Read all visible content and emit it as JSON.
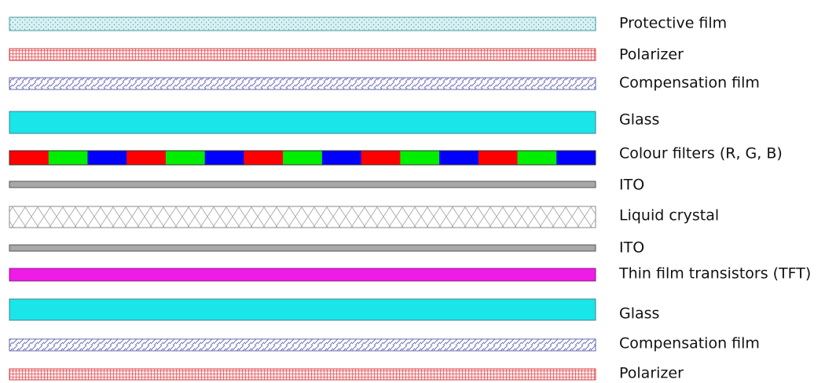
{
  "title": "",
  "layers": [
    {
      "id": "protective-film",
      "label": "Protective film",
      "pattern": "dotted",
      "fill": "#d8f1f3",
      "stroke": "#4a9a9f"
    },
    {
      "id": "polarizer-top",
      "label": "Polarizer",
      "pattern": "grid",
      "fill": "#fde8e8",
      "stroke": "#d8444a"
    },
    {
      "id": "compensation-film-top",
      "label": "Compensation film",
      "pattern": "diagonal",
      "fill": "#ffffff",
      "stroke": "#6a6ab2"
    },
    {
      "id": "glass-top",
      "label": "Glass",
      "pattern": "solid",
      "fill": "#19e6e8",
      "stroke": "#4a7e8c"
    },
    {
      "id": "colour-filters",
      "label": "Colour filters (R, G, B)",
      "pattern": "rgb",
      "fill": "",
      "stroke": "#333333"
    },
    {
      "id": "ito-top",
      "label": "ITO",
      "pattern": "solid",
      "fill": "#a8a8a8",
      "stroke": "#555555"
    },
    {
      "id": "liquid-crystal",
      "label": "Liquid crystal",
      "pattern": "crosshatch",
      "fill": "#ffffff",
      "stroke": "#8a8a8a"
    },
    {
      "id": "ito-bottom",
      "label": "ITO",
      "pattern": "solid",
      "fill": "#a8a8a8",
      "stroke": "#555555"
    },
    {
      "id": "tft",
      "label": "Thin film transistors (TFT)",
      "pattern": "solid",
      "fill": "#ee1ce6",
      "stroke": "#8c1888"
    },
    {
      "id": "glass-bottom",
      "label": "Glass",
      "pattern": "solid",
      "fill": "#19e6e8",
      "stroke": "#4a7e8c"
    },
    {
      "id": "compensation-film-bottom",
      "label": "Compensation film",
      "pattern": "diagonal",
      "fill": "#ffffff",
      "stroke": "#6a6ab2"
    },
    {
      "id": "polarizer-bottom",
      "label": "Polarizer",
      "pattern": "grid",
      "fill": "#fde8e8",
      "stroke": "#d8444a"
    }
  ],
  "filter_colors": [
    "#ff0000",
    "#00ee00",
    "#0000ff"
  ],
  "filter_cells": 15
}
